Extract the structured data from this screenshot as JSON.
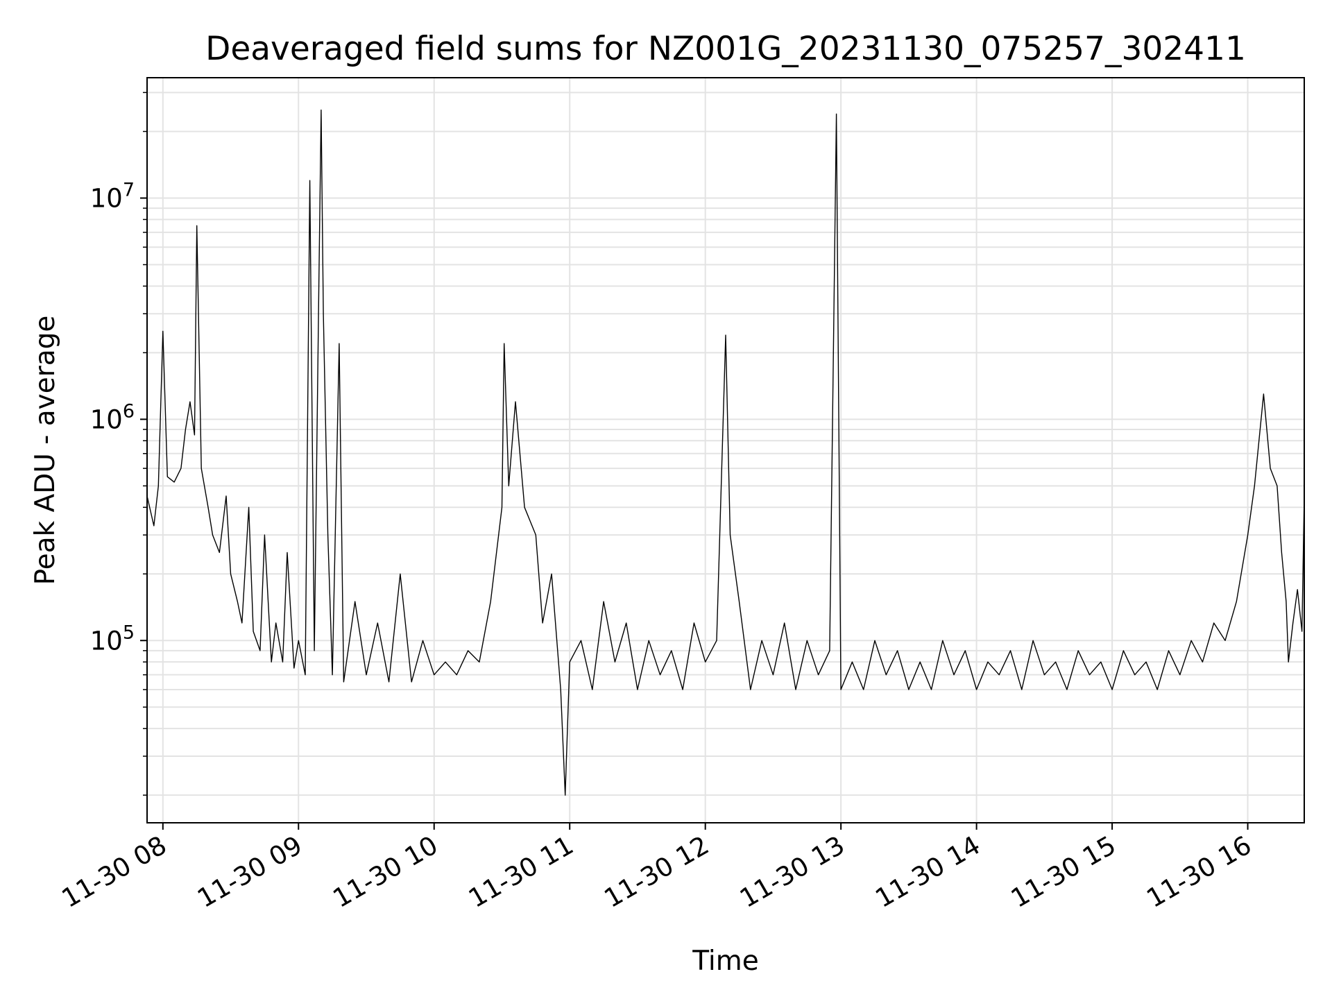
{
  "chart_data": {
    "type": "line",
    "title": "Deaveraged field sums for NZ001G_20231130_075257_302411",
    "xlabel": "Time",
    "ylabel": "Peak ADU - average",
    "y_scale": "log",
    "ylim": [
      15000,
      35000000
    ],
    "xlim": [
      "11-30 07:53",
      "11-30 16:25"
    ],
    "grid": true,
    "line_color": "#000000",
    "x_ticks": [
      "11-30 08",
      "11-30 09",
      "11-30 10",
      "11-30 11",
      "11-30 12",
      "11-30 13",
      "11-30 14",
      "11-30 15",
      "11-30 16"
    ],
    "y_ticks": [
      {
        "base": "10",
        "exp": "5",
        "value": 100000
      },
      {
        "base": "10",
        "exp": "6",
        "value": 1000000
      },
      {
        "base": "10",
        "exp": "7",
        "value": 10000000
      }
    ],
    "series": [
      {
        "name": "",
        "points": [
          [
            "11-30 07:53",
            450000
          ],
          [
            "11-30 07:56",
            330000
          ],
          [
            "11-30 07:58",
            500000
          ],
          [
            "11-30 08:00",
            2500000
          ],
          [
            "11-30 08:02",
            550000
          ],
          [
            "11-30 08:05",
            520000
          ],
          [
            "11-30 08:08",
            600000
          ],
          [
            "11-30 08:10",
            900000
          ],
          [
            "11-30 08:12",
            1200000
          ],
          [
            "11-30 08:14",
            850000
          ],
          [
            "11-30 08:15",
            7500000
          ],
          [
            "11-30 08:17",
            600000
          ],
          [
            "11-30 08:20",
            400000
          ],
          [
            "11-30 08:22",
            300000
          ],
          [
            "11-30 08:25",
            250000
          ],
          [
            "11-30 08:28",
            450000
          ],
          [
            "11-30 08:30",
            200000
          ],
          [
            "11-30 08:33",
            150000
          ],
          [
            "11-30 08:35",
            120000
          ],
          [
            "11-30 08:38",
            400000
          ],
          [
            "11-30 08:40",
            110000
          ],
          [
            "11-30 08:43",
            90000
          ],
          [
            "11-30 08:45",
            300000
          ],
          [
            "11-30 08:48",
            80000
          ],
          [
            "11-30 08:50",
            120000
          ],
          [
            "11-30 08:53",
            80000
          ],
          [
            "11-30 08:55",
            250000
          ],
          [
            "11-30 08:58",
            75000
          ],
          [
            "11-30 09:00",
            100000
          ],
          [
            "11-30 09:03",
            70000
          ],
          [
            "11-30 09:05",
            12000000
          ],
          [
            "11-30 09:07",
            90000
          ],
          [
            "11-30 09:09",
            4000000
          ],
          [
            "11-30 09:10",
            25000000
          ],
          [
            "11-30 09:11",
            3000000
          ],
          [
            "11-30 09:13",
            300000
          ],
          [
            "11-30 09:15",
            70000
          ],
          [
            "11-30 09:18",
            2200000
          ],
          [
            "11-30 09:20",
            65000
          ],
          [
            "11-30 09:25",
            150000
          ],
          [
            "11-30 09:30",
            70000
          ],
          [
            "11-30 09:35",
            120000
          ],
          [
            "11-30 09:40",
            65000
          ],
          [
            "11-30 09:45",
            200000
          ],
          [
            "11-30 09:50",
            65000
          ],
          [
            "11-30 09:55",
            100000
          ],
          [
            "11-30 10:00",
            70000
          ],
          [
            "11-30 10:05",
            80000
          ],
          [
            "11-30 10:10",
            70000
          ],
          [
            "11-30 10:15",
            90000
          ],
          [
            "11-30 10:20",
            80000
          ],
          [
            "11-30 10:25",
            150000
          ],
          [
            "11-30 10:30",
            400000
          ],
          [
            "11-30 10:31",
            2200000
          ],
          [
            "11-30 10:33",
            500000
          ],
          [
            "11-30 10:36",
            1200000
          ],
          [
            "11-30 10:40",
            400000
          ],
          [
            "11-30 10:45",
            300000
          ],
          [
            "11-30 10:48",
            120000
          ],
          [
            "11-30 10:52",
            200000
          ],
          [
            "11-30 10:56",
            60000
          ],
          [
            "11-30 10:58",
            20000
          ],
          [
            "11-30 11:00",
            80000
          ],
          [
            "11-30 11:05",
            100000
          ],
          [
            "11-30 11:10",
            60000
          ],
          [
            "11-30 11:15",
            150000
          ],
          [
            "11-30 11:20",
            80000
          ],
          [
            "11-30 11:25",
            120000
          ],
          [
            "11-30 11:30",
            60000
          ],
          [
            "11-30 11:35",
            100000
          ],
          [
            "11-30 11:40",
            70000
          ],
          [
            "11-30 11:45",
            90000
          ],
          [
            "11-30 11:50",
            60000
          ],
          [
            "11-30 11:55",
            120000
          ],
          [
            "11-30 12:00",
            80000
          ],
          [
            "11-30 12:05",
            100000
          ],
          [
            "11-30 12:09",
            2400000
          ],
          [
            "11-30 12:11",
            300000
          ],
          [
            "11-30 12:15",
            150000
          ],
          [
            "11-30 12:20",
            60000
          ],
          [
            "11-30 12:25",
            100000
          ],
          [
            "11-30 12:30",
            70000
          ],
          [
            "11-30 12:35",
            120000
          ],
          [
            "11-30 12:40",
            60000
          ],
          [
            "11-30 12:45",
            100000
          ],
          [
            "11-30 12:50",
            70000
          ],
          [
            "11-30 12:55",
            90000
          ],
          [
            "11-30 12:58",
            24000000
          ],
          [
            "11-30 13:00",
            60000
          ],
          [
            "11-30 13:05",
            80000
          ],
          [
            "11-30 13:10",
            60000
          ],
          [
            "11-30 13:15",
            100000
          ],
          [
            "11-30 13:20",
            70000
          ],
          [
            "11-30 13:25",
            90000
          ],
          [
            "11-30 13:30",
            60000
          ],
          [
            "11-30 13:35",
            80000
          ],
          [
            "11-30 13:40",
            60000
          ],
          [
            "11-30 13:45",
            100000
          ],
          [
            "11-30 13:50",
            70000
          ],
          [
            "11-30 13:55",
            90000
          ],
          [
            "11-30 14:00",
            60000
          ],
          [
            "11-30 14:05",
            80000
          ],
          [
            "11-30 14:10",
            70000
          ],
          [
            "11-30 14:15",
            90000
          ],
          [
            "11-30 14:20",
            60000
          ],
          [
            "11-30 14:25",
            100000
          ],
          [
            "11-30 14:30",
            70000
          ],
          [
            "11-30 14:35",
            80000
          ],
          [
            "11-30 14:40",
            60000
          ],
          [
            "11-30 14:45",
            90000
          ],
          [
            "11-30 14:50",
            70000
          ],
          [
            "11-30 14:55",
            80000
          ],
          [
            "11-30 15:00",
            60000
          ],
          [
            "11-30 15:05",
            90000
          ],
          [
            "11-30 15:10",
            70000
          ],
          [
            "11-30 15:15",
            80000
          ],
          [
            "11-30 15:20",
            60000
          ],
          [
            "11-30 15:25",
            90000
          ],
          [
            "11-30 15:30",
            70000
          ],
          [
            "11-30 15:35",
            100000
          ],
          [
            "11-30 15:40",
            80000
          ],
          [
            "11-30 15:45",
            120000
          ],
          [
            "11-30 15:50",
            100000
          ],
          [
            "11-30 15:55",
            150000
          ],
          [
            "11-30 16:00",
            300000
          ],
          [
            "11-30 16:03",
            500000
          ],
          [
            "11-30 16:07",
            1300000
          ],
          [
            "11-30 16:10",
            600000
          ],
          [
            "11-30 16:13",
            500000
          ],
          [
            "11-30 16:15",
            250000
          ],
          [
            "11-30 16:17",
            150000
          ],
          [
            "11-30 16:18",
            80000
          ],
          [
            "11-30 16:20",
            120000
          ],
          [
            "11-30 16:22",
            170000
          ],
          [
            "11-30 16:24",
            110000
          ],
          [
            "11-30 16:25",
            450000
          ]
        ]
      }
    ]
  }
}
